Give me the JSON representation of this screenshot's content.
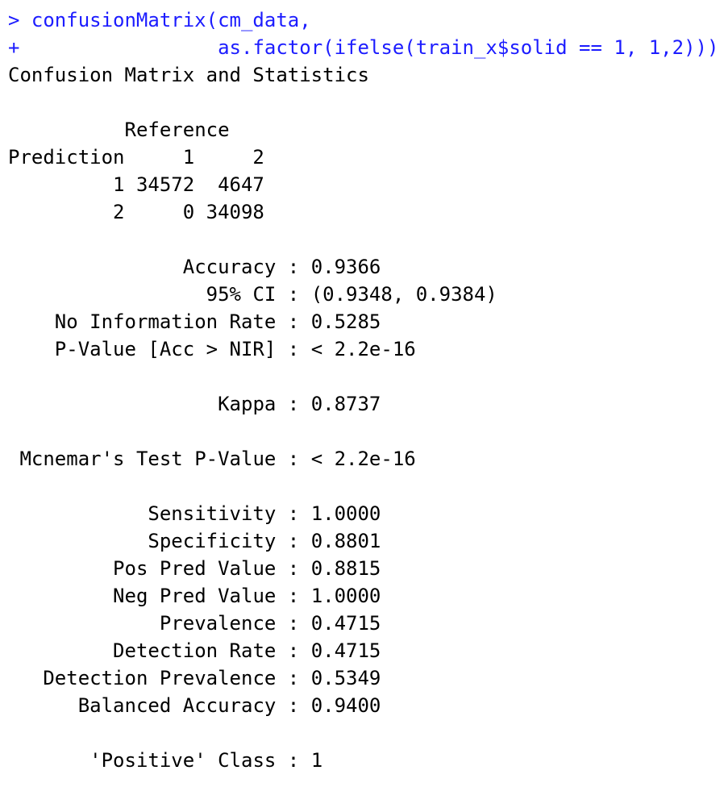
{
  "console": {
    "commands": [
      {
        "prompt": ">",
        "code": "confusionMatrix(cm_data,",
        "indent": 0
      },
      {
        "prompt": "+",
        "code": "as.factor(ifelse(train_x$solid == 1, 1,2)))",
        "indent": 16
      }
    ],
    "title": "Confusion Matrix and Statistics",
    "matrix": {
      "reference_header": "Reference",
      "prediction_header": "Prediction",
      "columns": [
        "1",
        "2"
      ],
      "rows": [
        {
          "label": "1",
          "cells": [
            34572,
            4647
          ]
        },
        {
          "label": "2",
          "cells": [
            0,
            34098
          ]
        }
      ]
    },
    "separator": ":",
    "stats": [
      [
        {
          "label": "Accuracy",
          "value": "0.9366"
        },
        {
          "label": "95% CI",
          "value": "(0.9348, 0.9384)"
        },
        {
          "label": "No Information Rate",
          "value": "0.5285"
        },
        {
          "label": "P-Value [Acc > NIR]",
          "value": "< 2.2e-16"
        }
      ],
      [
        {
          "label": "Kappa",
          "value": "0.8737"
        }
      ],
      [
        {
          "label": "Mcnemar's Test P-Value",
          "value": "< 2.2e-16"
        }
      ],
      [
        {
          "label": "Sensitivity",
          "value": "1.0000"
        },
        {
          "label": "Specificity",
          "value": "0.8801"
        },
        {
          "label": "Pos Pred Value",
          "value": "0.8815"
        },
        {
          "label": "Neg Pred Value",
          "value": "1.0000"
        },
        {
          "label": "Prevalence",
          "value": "0.4715"
        },
        {
          "label": "Detection Rate",
          "value": "0.4715"
        },
        {
          "label": "Detection Prevalence",
          "value": "0.5349"
        },
        {
          "label": "Balanced Accuracy",
          "value": "0.9400"
        }
      ],
      [
        {
          "label": "'Positive' Class",
          "value": "1"
        }
      ]
    ]
  }
}
